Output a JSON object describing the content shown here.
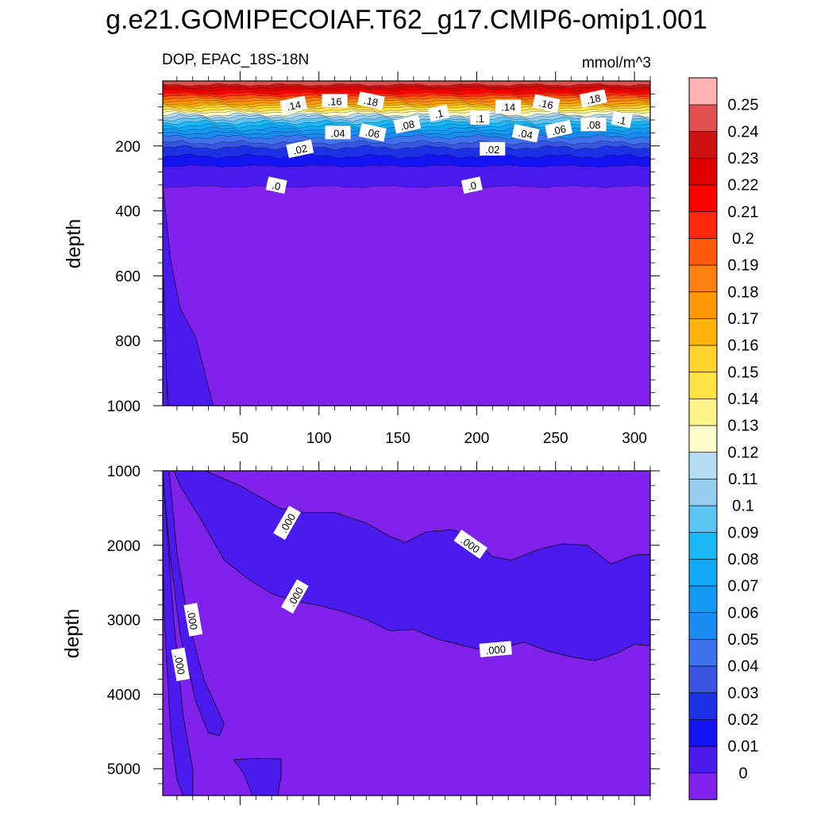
{
  "chart_data": {
    "type": "contour",
    "title": "g.e21.GOMIPECOIAF.T62_g17.CMIP6-omip1.001",
    "left_subtitle": "DOP, EPAC_18S-18N",
    "right_subtitle": "mmol/m^3",
    "variable": "DOP",
    "region": "EPAC_18S-18N",
    "units": "mmol/m^3",
    "xlim": [
      1,
      310
    ],
    "x_ticks": [
      50,
      100,
      150,
      200,
      250,
      300
    ],
    "colorbar": {
      "levels": [
        0,
        0.01,
        0.02,
        0.03,
        0.04,
        0.05,
        0.06,
        0.07,
        0.08,
        0.09,
        0.1,
        0.11,
        0.12,
        0.13,
        0.14,
        0.15,
        0.16,
        0.17,
        0.18,
        0.19,
        0.2,
        0.21,
        0.22,
        0.23,
        0.24,
        0.25
      ],
      "labels": [
        "0",
        "0.01",
        "0.02",
        "0.03",
        "0.04",
        "0.05",
        "0.06",
        "0.07",
        "0.08",
        "0.09",
        "0.1",
        "0.11",
        "0.12",
        "0.13",
        "0.14",
        "0.15",
        "0.16",
        "0.17",
        "0.18",
        "0.19",
        "0.2",
        "0.21",
        "0.22",
        "0.23",
        "0.24",
        "0.25"
      ],
      "colors": [
        "#8022ec",
        "#4a1aee",
        "#1414f2",
        "#1c30e4",
        "#3a55e0",
        "#3e72ec",
        "#1a8bf0",
        "#1499f2",
        "#10aaf6",
        "#1ab8f6",
        "#5cc4f2",
        "#96ccee",
        "#b4dcf2",
        "#fffcce",
        "#fff28a",
        "#ffe344",
        "#ffd22c",
        "#ffb40c",
        "#ff9a06",
        "#ff8012",
        "#ff5a0c",
        "#ff280e",
        "#ff0000",
        "#e00000",
        "#cc1212",
        "#e05050",
        "#ffb2b4"
      ]
    },
    "panels": [
      {
        "name": "upper",
        "ylabel": "depth",
        "ylim": [
          0,
          1000
        ],
        "y_ticks": [
          200,
          400,
          600,
          800,
          1000
        ],
        "y_tick_labels": [
          "200",
          "400",
          "600",
          "800",
          "1000"
        ],
        "x_tick_labels": [
          "50",
          "100",
          "150",
          "200",
          "250",
          "300"
        ],
        "contour_labels": [
          {
            "text": ".14",
            "x": 84,
            "depth": 75
          },
          {
            "text": ".16",
            "x": 110,
            "depth": 62
          },
          {
            "text": ".18",
            "x": 133,
            "depth": 62
          },
          {
            "text": ".1",
            "x": 176,
            "depth": 100
          },
          {
            "text": ".14",
            "x": 220,
            "depth": 80
          },
          {
            "text": ".16",
            "x": 244,
            "depth": 70
          },
          {
            "text": ".18",
            "x": 274,
            "depth": 55
          },
          {
            "text": ".04",
            "x": 112,
            "depth": 160
          },
          {
            "text": ".06",
            "x": 134,
            "depth": 160
          },
          {
            "text": ".08",
            "x": 156,
            "depth": 135
          },
          {
            "text": ".1",
            "x": 202,
            "depth": 115
          },
          {
            "text": ".04",
            "x": 231,
            "depth": 162
          },
          {
            "text": ".06",
            "x": 252,
            "depth": 150
          },
          {
            "text": ".08",
            "x": 274,
            "depth": 135
          },
          {
            "text": ".1",
            "x": 292,
            "depth": 120
          },
          {
            "text": ".02",
            "x": 88,
            "depth": 210
          },
          {
            "text": ".02",
            "x": 210,
            "depth": 210
          },
          {
            "text": ".0",
            "x": 73,
            "depth": 322
          },
          {
            "text": ".0",
            "x": 197,
            "depth": 322
          }
        ]
      },
      {
        "name": "lower",
        "ylabel": "depth",
        "ylim": [
          1000,
          5360
        ],
        "y_ticks": [
          1000,
          2000,
          3000,
          4000,
          5000
        ],
        "y_tick_labels": [
          "1000",
          "2000",
          "3000",
          "4000",
          "5000"
        ],
        "contour_labels": [
          {
            "text": ".000",
            "x": 80,
            "depth": 1700
          },
          {
            "text": ".000",
            "x": 196,
            "depth": 1990
          },
          {
            "text": ".000",
            "x": 85,
            "depth": 2690
          },
          {
            "text": ".000",
            "x": 20,
            "depth": 3000
          },
          {
            "text": ".000",
            "x": 12,
            "depth": 3600
          },
          {
            "text": ".000",
            "x": 212,
            "depth": 3400
          }
        ]
      }
    ]
  }
}
